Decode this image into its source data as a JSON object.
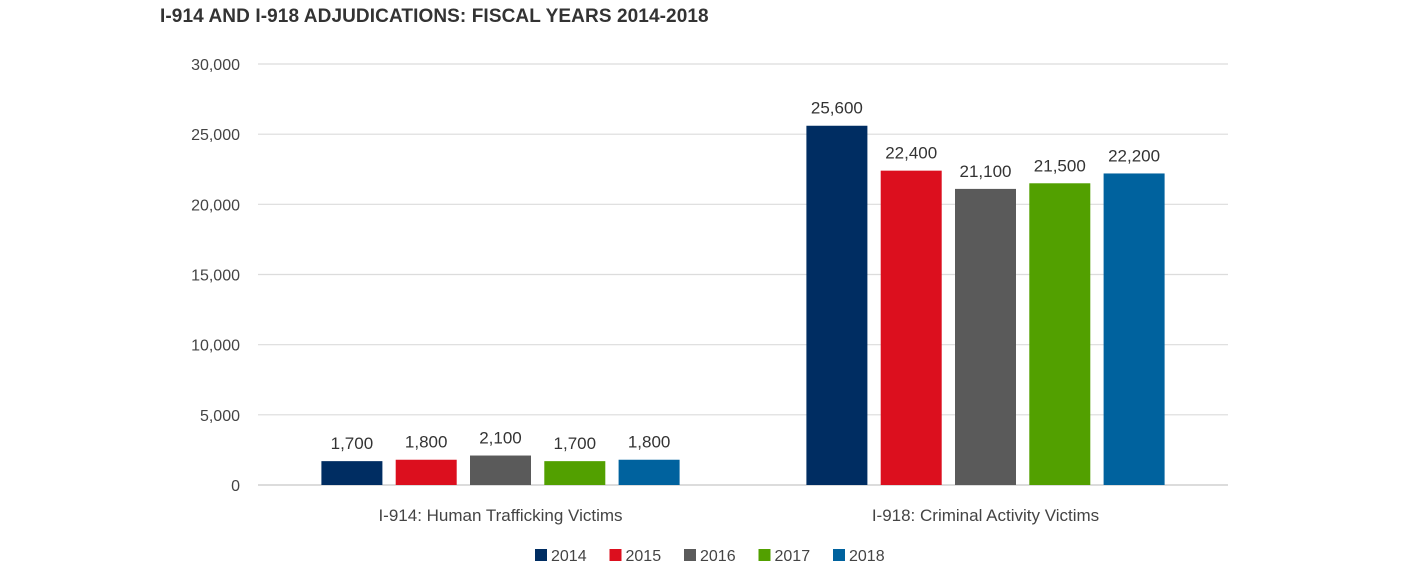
{
  "chart_data": {
    "type": "bar",
    "title": "I-914 AND I-918 ADJUDICATIONS: FISCAL YEARS 2014-2018",
    "xlabel": "",
    "ylabel": "",
    "ylim": [
      0,
      30000
    ],
    "yticks": [
      0,
      5000,
      10000,
      15000,
      20000,
      25000,
      30000
    ],
    "ytick_labels": [
      "0",
      "5,000",
      "10,000",
      "15,000",
      "20,000",
      "25,000",
      "30,000"
    ],
    "grid": true,
    "legend_position": "bottom-center",
    "categories": [
      "I-914: Human Trafficking Victims",
      "I-918: Criminal Activity Victims"
    ],
    "series": [
      {
        "name": "2014",
        "color": "#002d62",
        "values": [
          1700,
          25600
        ],
        "labels": [
          "1,700",
          "25,600"
        ]
      },
      {
        "name": "2015",
        "color": "#dc0f1e",
        "values": [
          1800,
          22400
        ],
        "labels": [
          "1,800",
          "22,400"
        ]
      },
      {
        "name": "2016",
        "color": "#5a5a5a",
        "values": [
          2100,
          21100
        ],
        "labels": [
          "2,100",
          "21,100"
        ]
      },
      {
        "name": "2017",
        "color": "#52a000",
        "values": [
          1700,
          21500
        ],
        "labels": [
          "1,700",
          "21,500"
        ]
      },
      {
        "name": "2018",
        "color": "#00629e",
        "values": [
          1800,
          22200
        ],
        "labels": [
          "1,800",
          "22,200"
        ]
      }
    ]
  }
}
